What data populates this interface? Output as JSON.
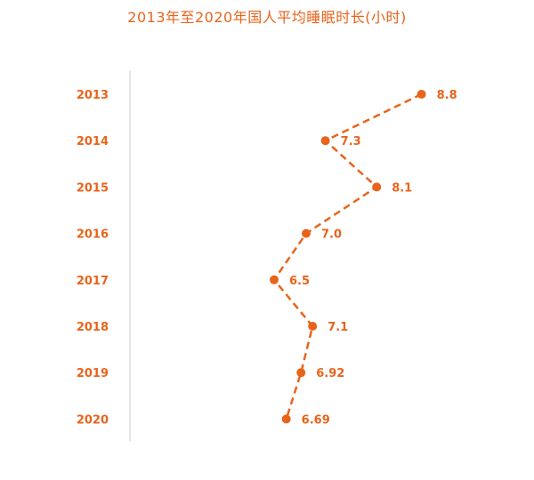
{
  "chart_data": {
    "type": "line",
    "orientation": "horizontal-values-vertical-categories",
    "title": "2013年至2020年国人平均睡眠时长(小时)",
    "categories": [
      "2013",
      "2014",
      "2015",
      "2016",
      "2017",
      "2018",
      "2019",
      "2020"
    ],
    "values": [
      8.8,
      7.3,
      8.1,
      7.0,
      6.5,
      7.1,
      6.92,
      6.69
    ],
    "data_labels": [
      "8.8",
      "7.3",
      "8.1",
      "7.0",
      "6.5",
      "7.1",
      "6.92",
      "6.69"
    ],
    "line_style": "dashed",
    "markers": "circle",
    "color": "#e8641b",
    "axis_color": "#c8c8c8",
    "grid": false,
    "legend": "none"
  }
}
